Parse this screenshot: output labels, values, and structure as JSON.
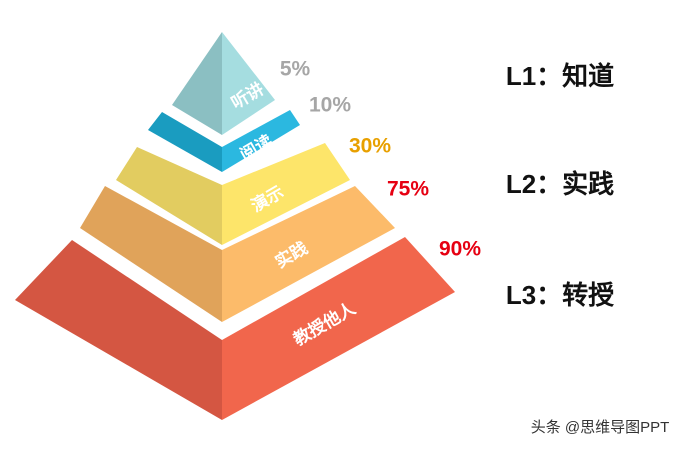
{
  "levels": [
    {
      "label": "听讲",
      "percent": "5%"
    },
    {
      "label": "阅读",
      "percent": "10%"
    },
    {
      "label": "演示",
      "percent": "30%"
    },
    {
      "label": "实践",
      "percent": "75%"
    },
    {
      "label": "教授他人",
      "percent": "90%"
    }
  ],
  "stages": [
    "L1：知道",
    "L2：实践",
    "L3：转授"
  ],
  "watermark": "头条 @思维导图PPT"
}
